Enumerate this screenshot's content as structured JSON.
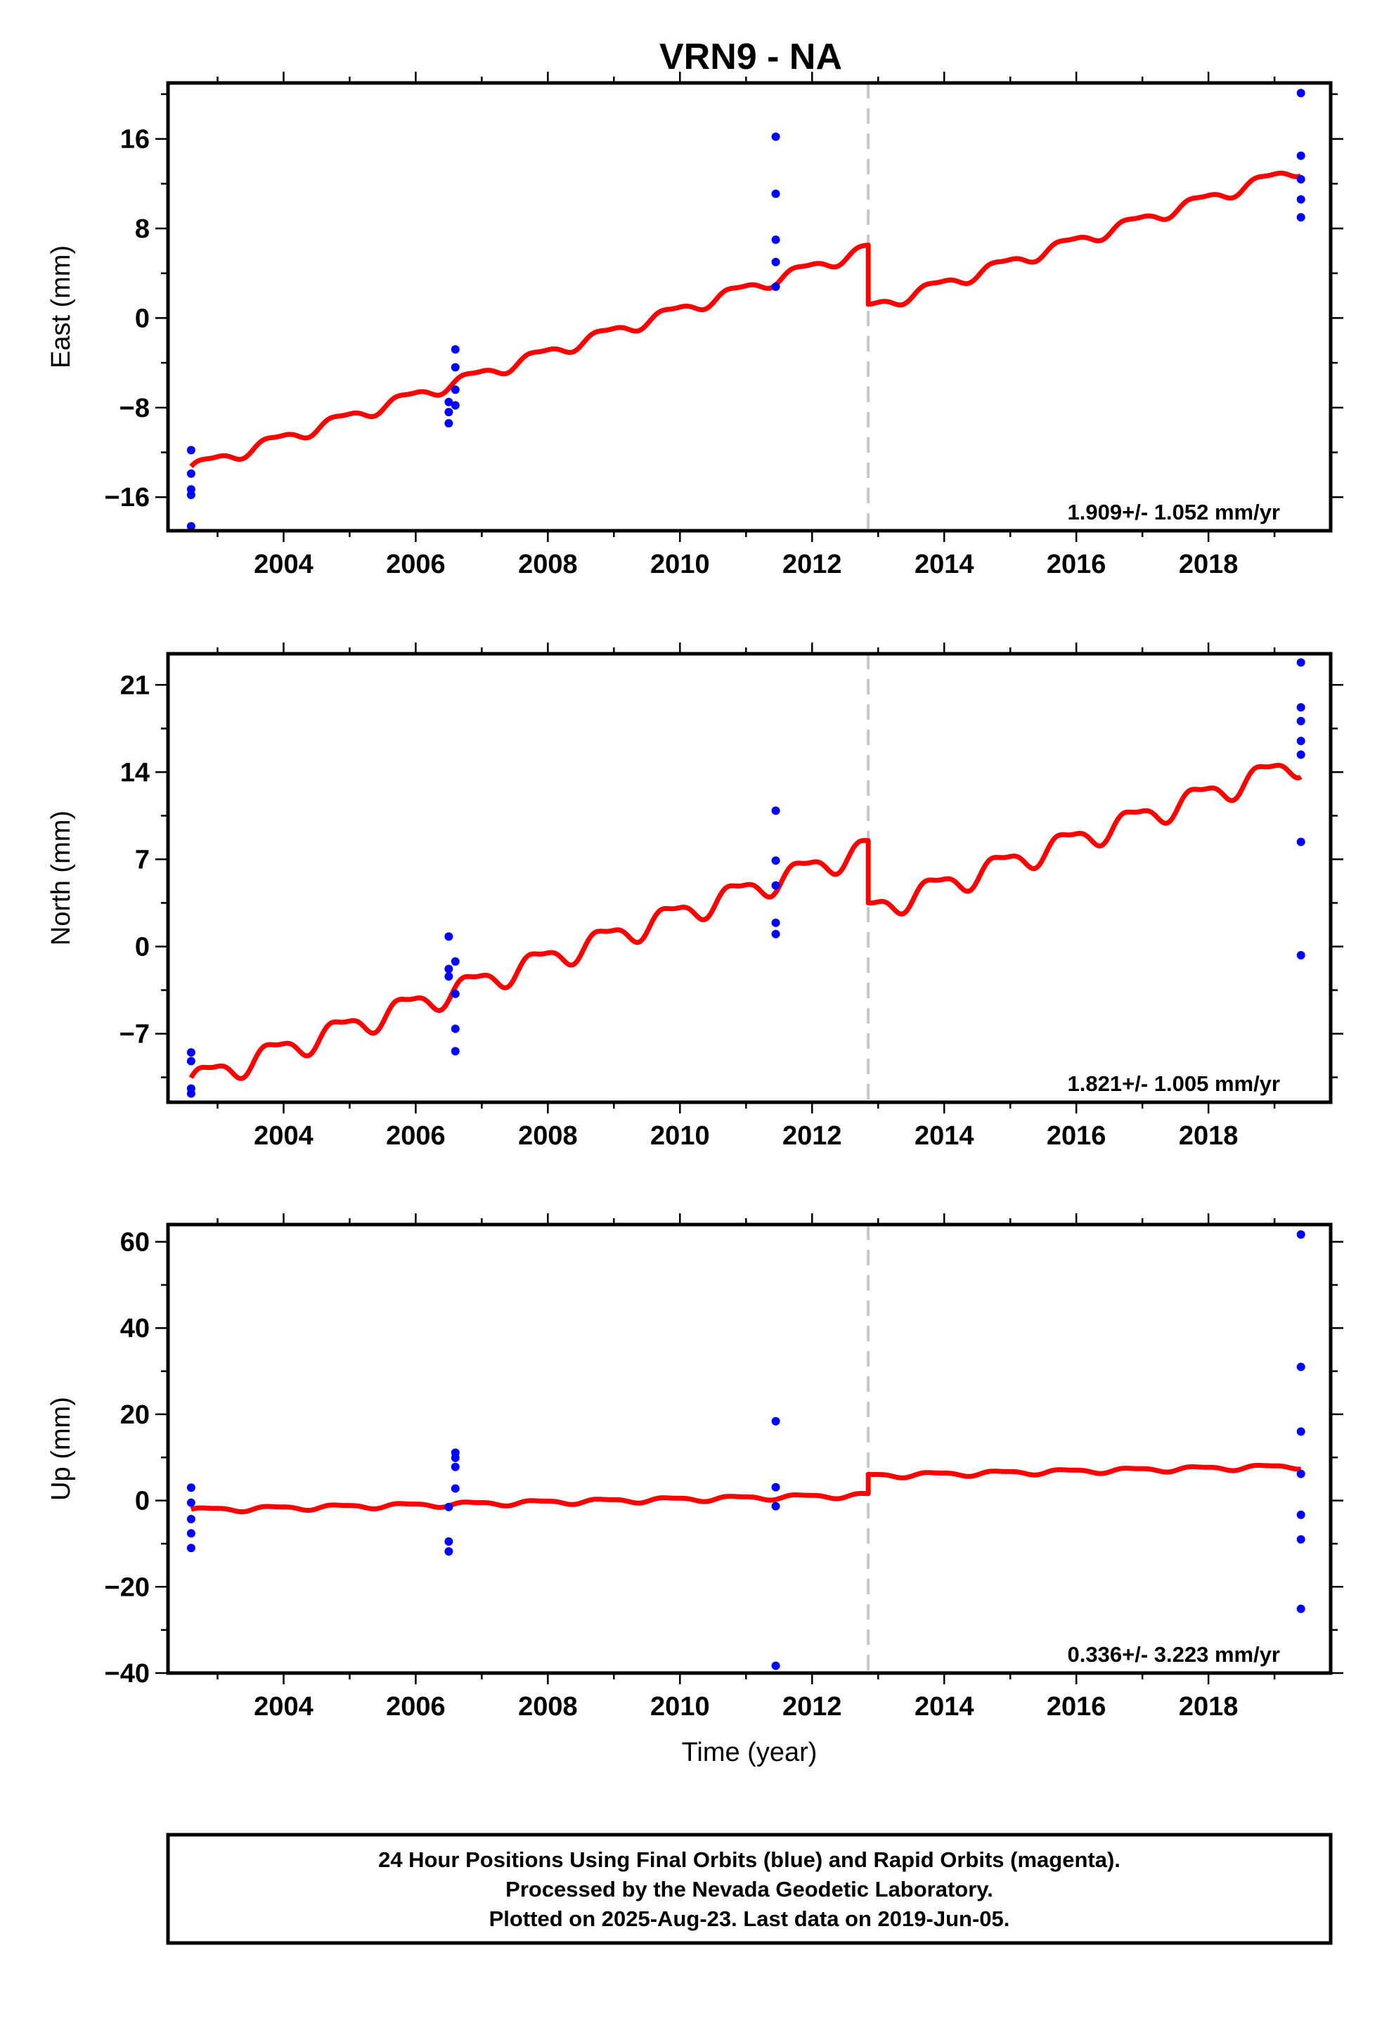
{
  "figure": {
    "title": "VRN9 - NA",
    "footer": [
      "24 Hour Positions Using Final Orbits (blue) and Rapid Orbits (magenta).",
      "Processed by the Nevada Geodetic Laboratory.",
      "Plotted on 2025-Aug-23. Last data on 2019-Jun-05."
    ],
    "colors": {
      "final_orbits": "#0000ff",
      "model": "#ff0000",
      "break_line": "#c8c8c8",
      "frame": "#000000"
    }
  },
  "chart_data": [
    {
      "type": "scatter",
      "component": "East",
      "ylabel": "East (mm)",
      "xlabel": "",
      "xlim": [
        2002.25,
        2019.85
      ],
      "ylim": [
        -19,
        21
      ],
      "xticks": [
        2004,
        2006,
        2008,
        2010,
        2012,
        2014,
        2016,
        2018
      ],
      "yticks": [
        -16,
        -8,
        0,
        8,
        16
      ],
      "rate_label": "1.909+/- 1.052 mm/yr",
      "break_epoch": 2012.85,
      "points": [
        {
          "x": 2002.6,
          "y": -11.8
        },
        {
          "x": 2002.6,
          "y": -13.9
        },
        {
          "x": 2002.6,
          "y": -15.3
        },
        {
          "x": 2002.6,
          "y": -15.8
        },
        {
          "x": 2002.6,
          "y": -18.6
        },
        {
          "x": 2006.5,
          "y": -7.5
        },
        {
          "x": 2006.5,
          "y": -8.4
        },
        {
          "x": 2006.5,
          "y": -9.4
        },
        {
          "x": 2006.6,
          "y": -2.8
        },
        {
          "x": 2006.6,
          "y": -4.4
        },
        {
          "x": 2006.6,
          "y": -6.4
        },
        {
          "x": 2006.6,
          "y": -7.8
        },
        {
          "x": 2011.45,
          "y": 16.2
        },
        {
          "x": 2011.45,
          "y": 11.1
        },
        {
          "x": 2011.45,
          "y": 7.0
        },
        {
          "x": 2011.45,
          "y": 5.0
        },
        {
          "x": 2011.45,
          "y": 2.8
        },
        {
          "x": 2019.4,
          "y": 20.1
        },
        {
          "x": 2019.4,
          "y": 14.5
        },
        {
          "x": 2019.4,
          "y": 12.4
        },
        {
          "x": 2019.4,
          "y": 10.6
        },
        {
          "x": 2019.4,
          "y": 9.0
        }
      ],
      "model": {
        "x_start": 2002.6,
        "x_end": 2019.4,
        "y_before": -13.4,
        "slope": 1.909,
        "offset": -5.3,
        "amplitude": 0.5
      }
    },
    {
      "type": "scatter",
      "component": "North",
      "ylabel": "North (mm)",
      "xlabel": "",
      "xlim": [
        2002.25,
        2019.85
      ],
      "ylim": [
        -12.5,
        23.5
      ],
      "xticks": [
        2004,
        2006,
        2008,
        2010,
        2012,
        2014,
        2016,
        2018
      ],
      "yticks": [
        -7,
        0,
        7,
        14,
        21
      ],
      "rate_label": "1.821+/- 1.005 mm/yr",
      "break_epoch": 2012.85,
      "points": [
        {
          "x": 2002.6,
          "y": -8.5
        },
        {
          "x": 2002.6,
          "y": -9.2
        },
        {
          "x": 2002.6,
          "y": -11.4
        },
        {
          "x": 2002.6,
          "y": -11.8
        },
        {
          "x": 2006.5,
          "y": 0.8
        },
        {
          "x": 2006.5,
          "y": -1.8
        },
        {
          "x": 2006.5,
          "y": -2.4
        },
        {
          "x": 2006.6,
          "y": -1.2
        },
        {
          "x": 2006.6,
          "y": -3.8
        },
        {
          "x": 2006.6,
          "y": -6.6
        },
        {
          "x": 2006.6,
          "y": -8.4
        },
        {
          "x": 2011.45,
          "y": 10.9
        },
        {
          "x": 2011.45,
          "y": 6.9
        },
        {
          "x": 2011.45,
          "y": 4.9
        },
        {
          "x": 2011.45,
          "y": 1.9
        },
        {
          "x": 2011.45,
          "y": 1.0
        },
        {
          "x": 2019.4,
          "y": 22.8
        },
        {
          "x": 2019.4,
          "y": 19.2
        },
        {
          "x": 2019.4,
          "y": 18.1
        },
        {
          "x": 2019.4,
          "y": 16.5
        },
        {
          "x": 2019.4,
          "y": 15.4
        },
        {
          "x": 2019.4,
          "y": 8.4
        },
        {
          "x": 2019.4,
          "y": -0.7
        }
      ],
      "model": {
        "x_start": 2002.6,
        "x_end": 2019.4,
        "y_before": -10.8,
        "slope": 1.821,
        "offset": -5.0,
        "amplitude": 0.9
      }
    },
    {
      "type": "scatter",
      "component": "Up",
      "ylabel": "Up (mm)",
      "xlabel": "Time (year)",
      "xlim": [
        2002.25,
        2019.85
      ],
      "ylim": [
        -40,
        64
      ],
      "xticks": [
        2004,
        2006,
        2008,
        2010,
        2012,
        2014,
        2016,
        2018
      ],
      "yticks": [
        -40,
        -20,
        0,
        20,
        40,
        60
      ],
      "rate_label": "0.336+/- 3.223 mm/yr",
      "break_epoch": 2012.85,
      "points": [
        {
          "x": 2002.6,
          "y": 3.0
        },
        {
          "x": 2002.6,
          "y": -0.5
        },
        {
          "x": 2002.6,
          "y": -4.3
        },
        {
          "x": 2002.6,
          "y": -7.6
        },
        {
          "x": 2002.6,
          "y": -11.0
        },
        {
          "x": 2006.5,
          "y": -1.5
        },
        {
          "x": 2006.5,
          "y": -9.5
        },
        {
          "x": 2006.5,
          "y": -11.8
        },
        {
          "x": 2006.6,
          "y": 11.1
        },
        {
          "x": 2006.6,
          "y": 9.9
        },
        {
          "x": 2006.6,
          "y": 7.8
        },
        {
          "x": 2006.6,
          "y": 2.8
        },
        {
          "x": 2011.45,
          "y": 18.4
        },
        {
          "x": 2011.45,
          "y": 3.1
        },
        {
          "x": 2011.45,
          "y": -1.3
        },
        {
          "x": 2011.45,
          "y": -38.3
        },
        {
          "x": 2019.4,
          "y": 61.7
        },
        {
          "x": 2019.4,
          "y": 31.0
        },
        {
          "x": 2019.4,
          "y": 16.0
        },
        {
          "x": 2019.4,
          "y": 6.2
        },
        {
          "x": 2019.4,
          "y": -3.3
        },
        {
          "x": 2019.4,
          "y": -9.0
        },
        {
          "x": 2019.4,
          "y": -25.1
        }
      ],
      "model": {
        "x_start": 2002.6,
        "x_end": 2019.4,
        "y_before": -2.2,
        "slope": 0.336,
        "offset": 4.5,
        "amplitude": 0.5
      }
    }
  ]
}
